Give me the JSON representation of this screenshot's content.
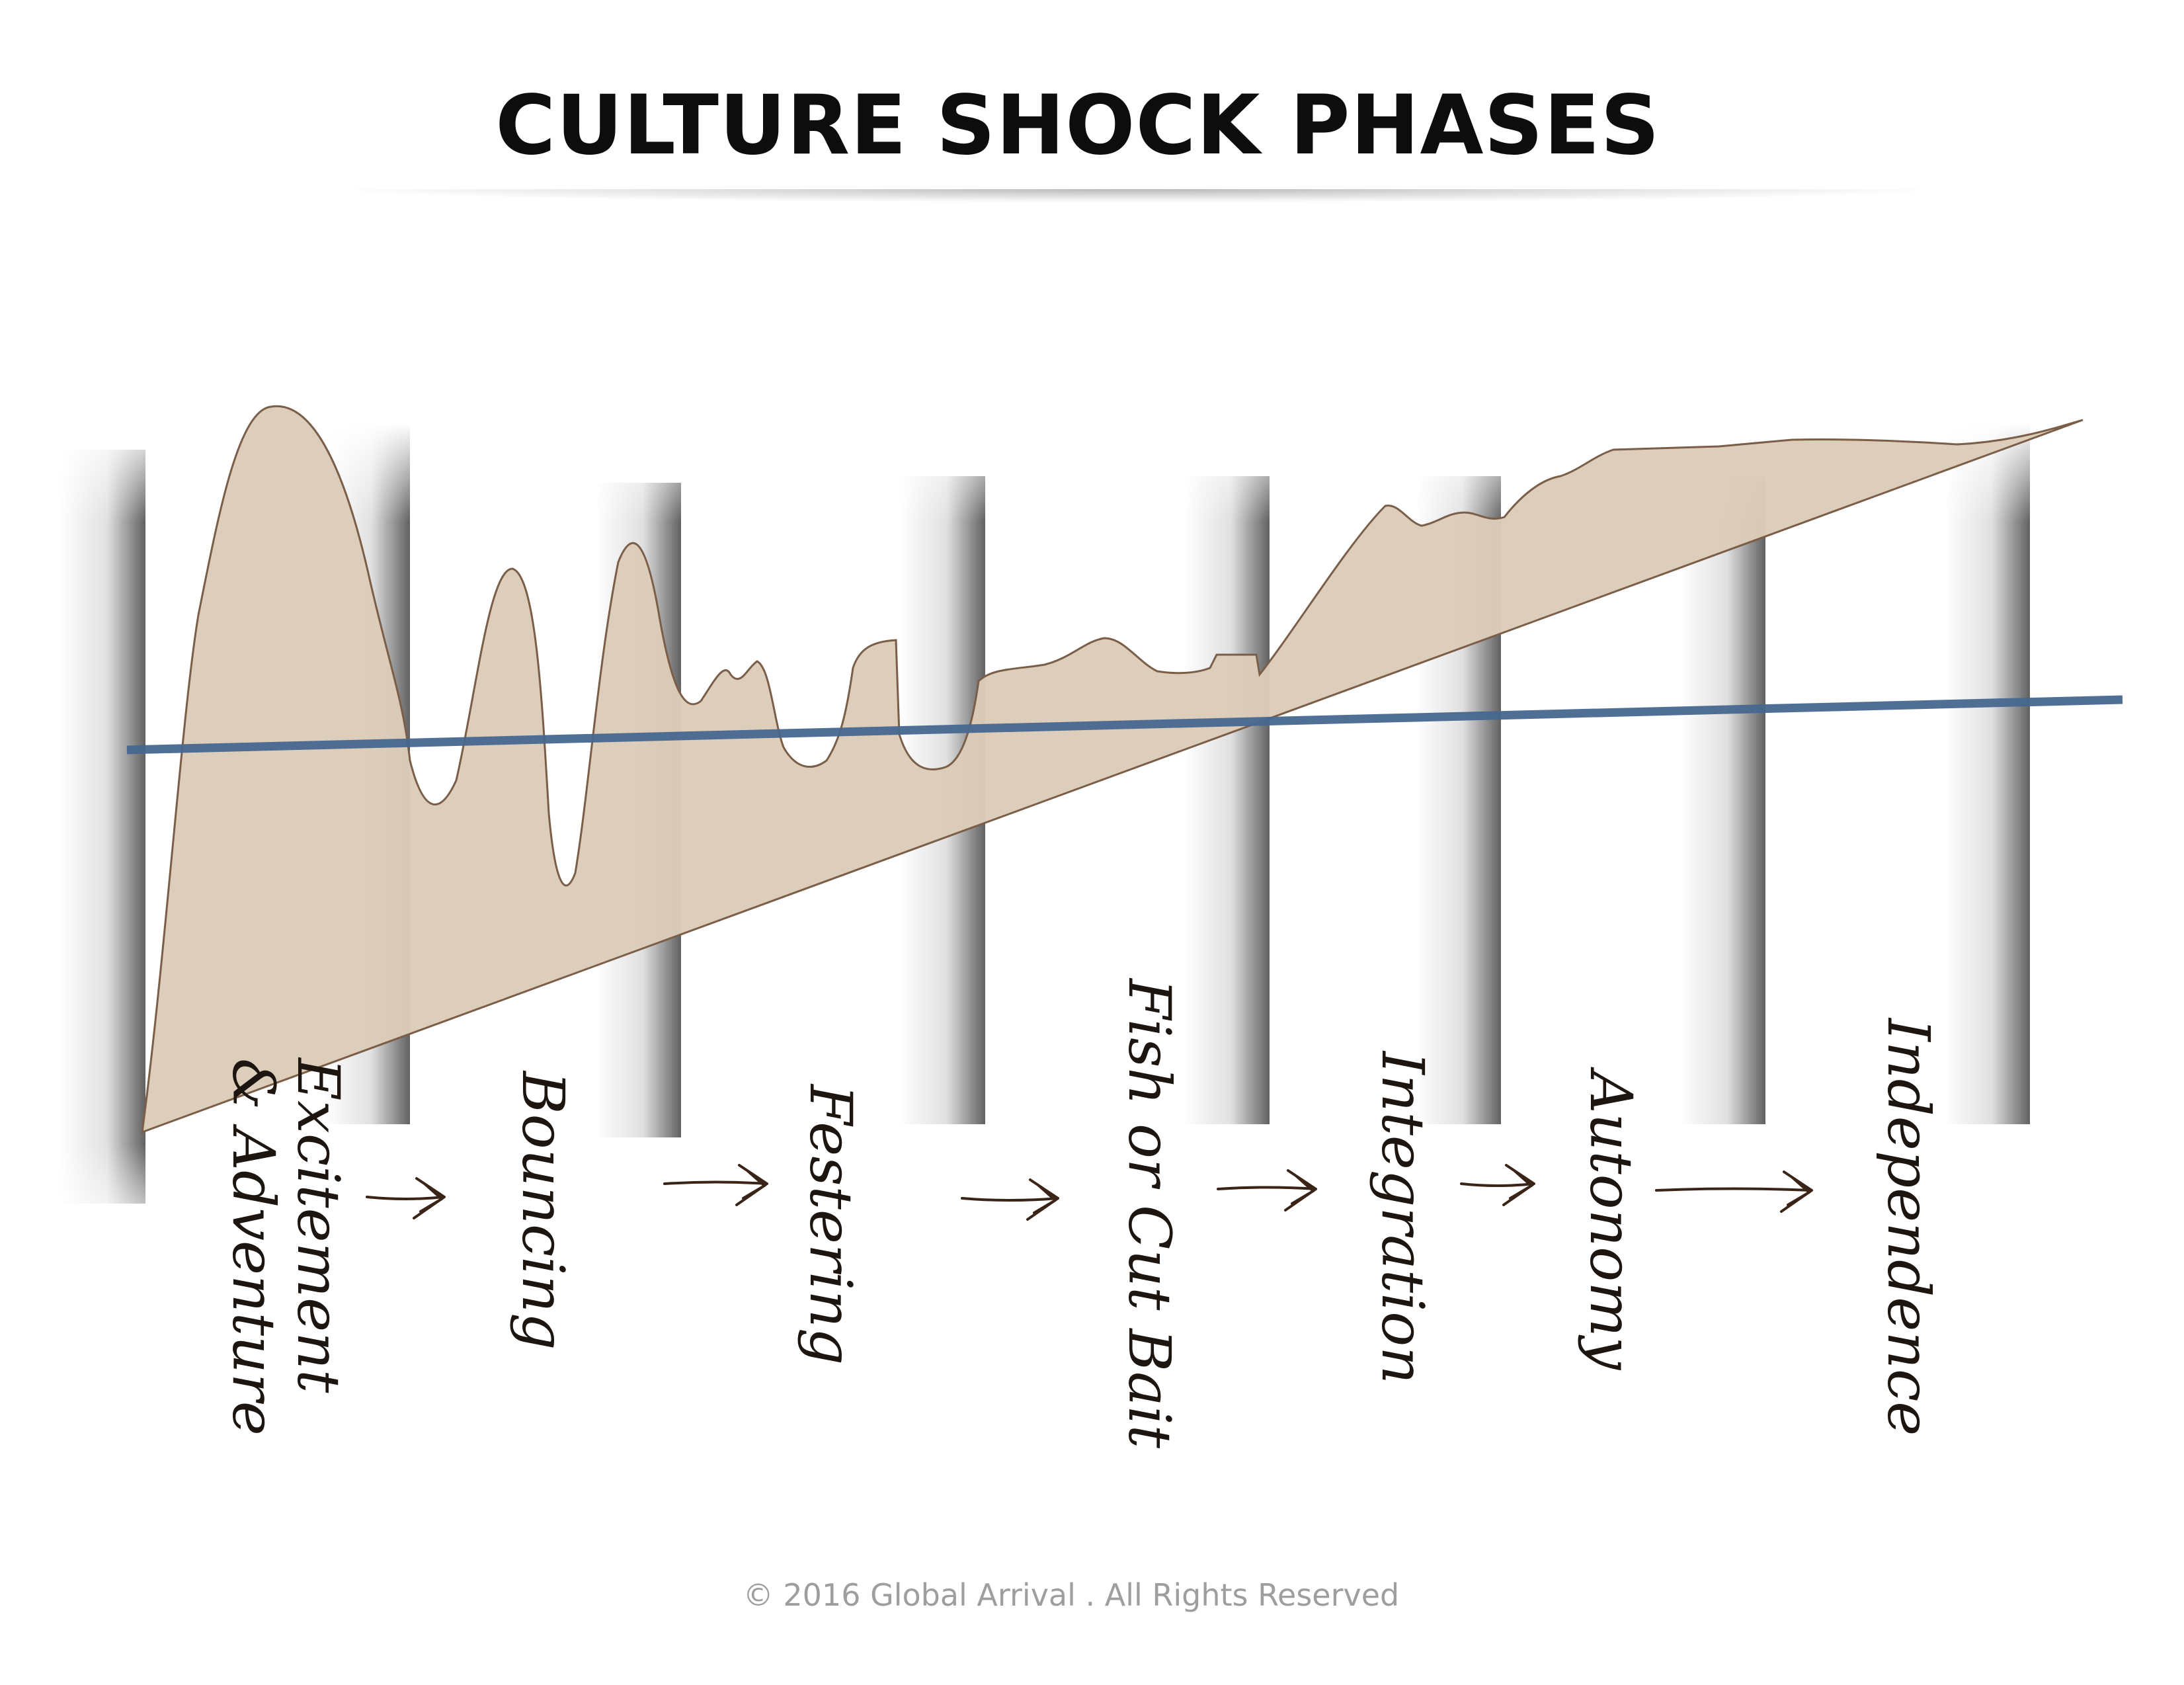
{
  "title": "CULTURE SHOCK PHASES",
  "phases": [
    {
      "label_lines": [
        "Excitement",
        "& Adventure"
      ]
    },
    {
      "label_lines": [
        "Bouncing"
      ]
    },
    {
      "label_lines": [
        "Festering"
      ]
    },
    {
      "label_lines": [
        "Fish or Cut Bait"
      ]
    },
    {
      "label_lines": [
        "Integration"
      ]
    },
    {
      "label_lines": [
        "Autonomy"
      ]
    },
    {
      "label_lines": [
        "Independence"
      ]
    }
  ],
  "colors": {
    "area_fill": "#dccbb9",
    "area_edge": "#7a5e48",
    "baseline": "#47678f",
    "arrow": "#3a2417",
    "title": "#0d0d0d",
    "copyright": "#9e9e9e"
  },
  "icons": [
    "arrow-right-icon"
  ],
  "copyright": "© 2016 Global Arrival . All Rights Reserved"
}
